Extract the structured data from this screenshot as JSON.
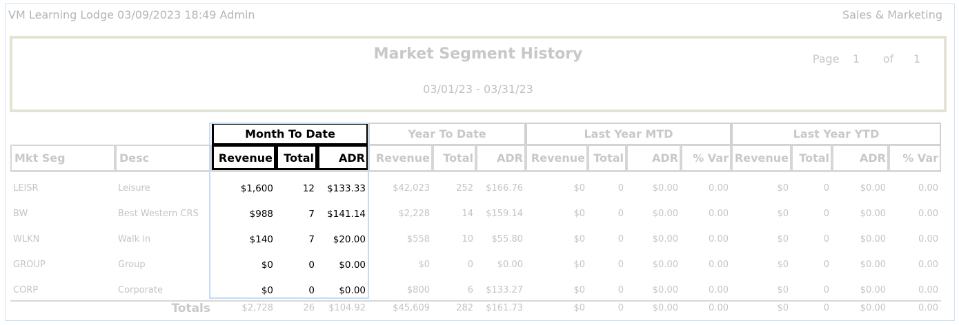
{
  "header": {
    "left": "VM Learning Lodge 03/09/2023 18:49  Admin",
    "right": "Sales & Marketing"
  },
  "report": {
    "title": "Market Segment History",
    "date_range": "03/01/23 - 03/31/23",
    "page_label": "Page",
    "page": "1",
    "of_label": "of",
    "pages": "1"
  },
  "groups": [
    "Month To Date",
    "Year To Date",
    "Last Year MTD",
    "Last Year YTD"
  ],
  "columns": [
    "Mkt Seg",
    "Desc",
    "Revenue",
    "Total",
    "ADR",
    "Revenue",
    "Total",
    "ADR",
    "Revenue",
    "Total",
    "ADR",
    "% Var",
    "Revenue",
    "Total",
    "ADR",
    "% Var"
  ],
  "rows": [
    [
      "LEISR",
      "Leisure",
      "$1,600",
      "12",
      "$133.33",
      "$42,023",
      "252",
      "$166.76",
      "$0",
      "0",
      "$0.00",
      "0.00",
      "$0",
      "0",
      "$0.00",
      "0.00"
    ],
    [
      "BW",
      "Best Western CRS",
      "$988",
      "7",
      "$141.14",
      "$2,228",
      "14",
      "$159.14",
      "$0",
      "0",
      "$0.00",
      "0.00",
      "$0",
      "0",
      "$0.00",
      "0.00"
    ],
    [
      "WLKN",
      "Walk in",
      "$140",
      "7",
      "$20.00",
      "$558",
      "10",
      "$55.80",
      "$0",
      "0",
      "$0.00",
      "0.00",
      "$0",
      "0",
      "$0.00",
      "0.00"
    ],
    [
      "GROUP",
      "Group",
      "$0",
      "0",
      "$0.00",
      "$0",
      "0",
      "$0.00",
      "$0",
      "0",
      "$0.00",
      "0.00",
      "$0",
      "0",
      "$0.00",
      "0.00"
    ],
    [
      "CORP",
      "Corporate",
      "$0",
      "0",
      "$0.00",
      "$800",
      "6",
      "$133.27",
      "$0",
      "0",
      "$0.00",
      "0.00",
      "$0",
      "0",
      "$0.00",
      "0.00"
    ]
  ],
  "totals": {
    "label": "Totals",
    "values": [
      "$2,728",
      "26",
      "$104.92",
      "$45,609",
      "282",
      "$161.73",
      "$0",
      "0",
      "$0.00",
      "0.00",
      "$0",
      "0",
      "$0.00",
      "0.00"
    ]
  }
}
